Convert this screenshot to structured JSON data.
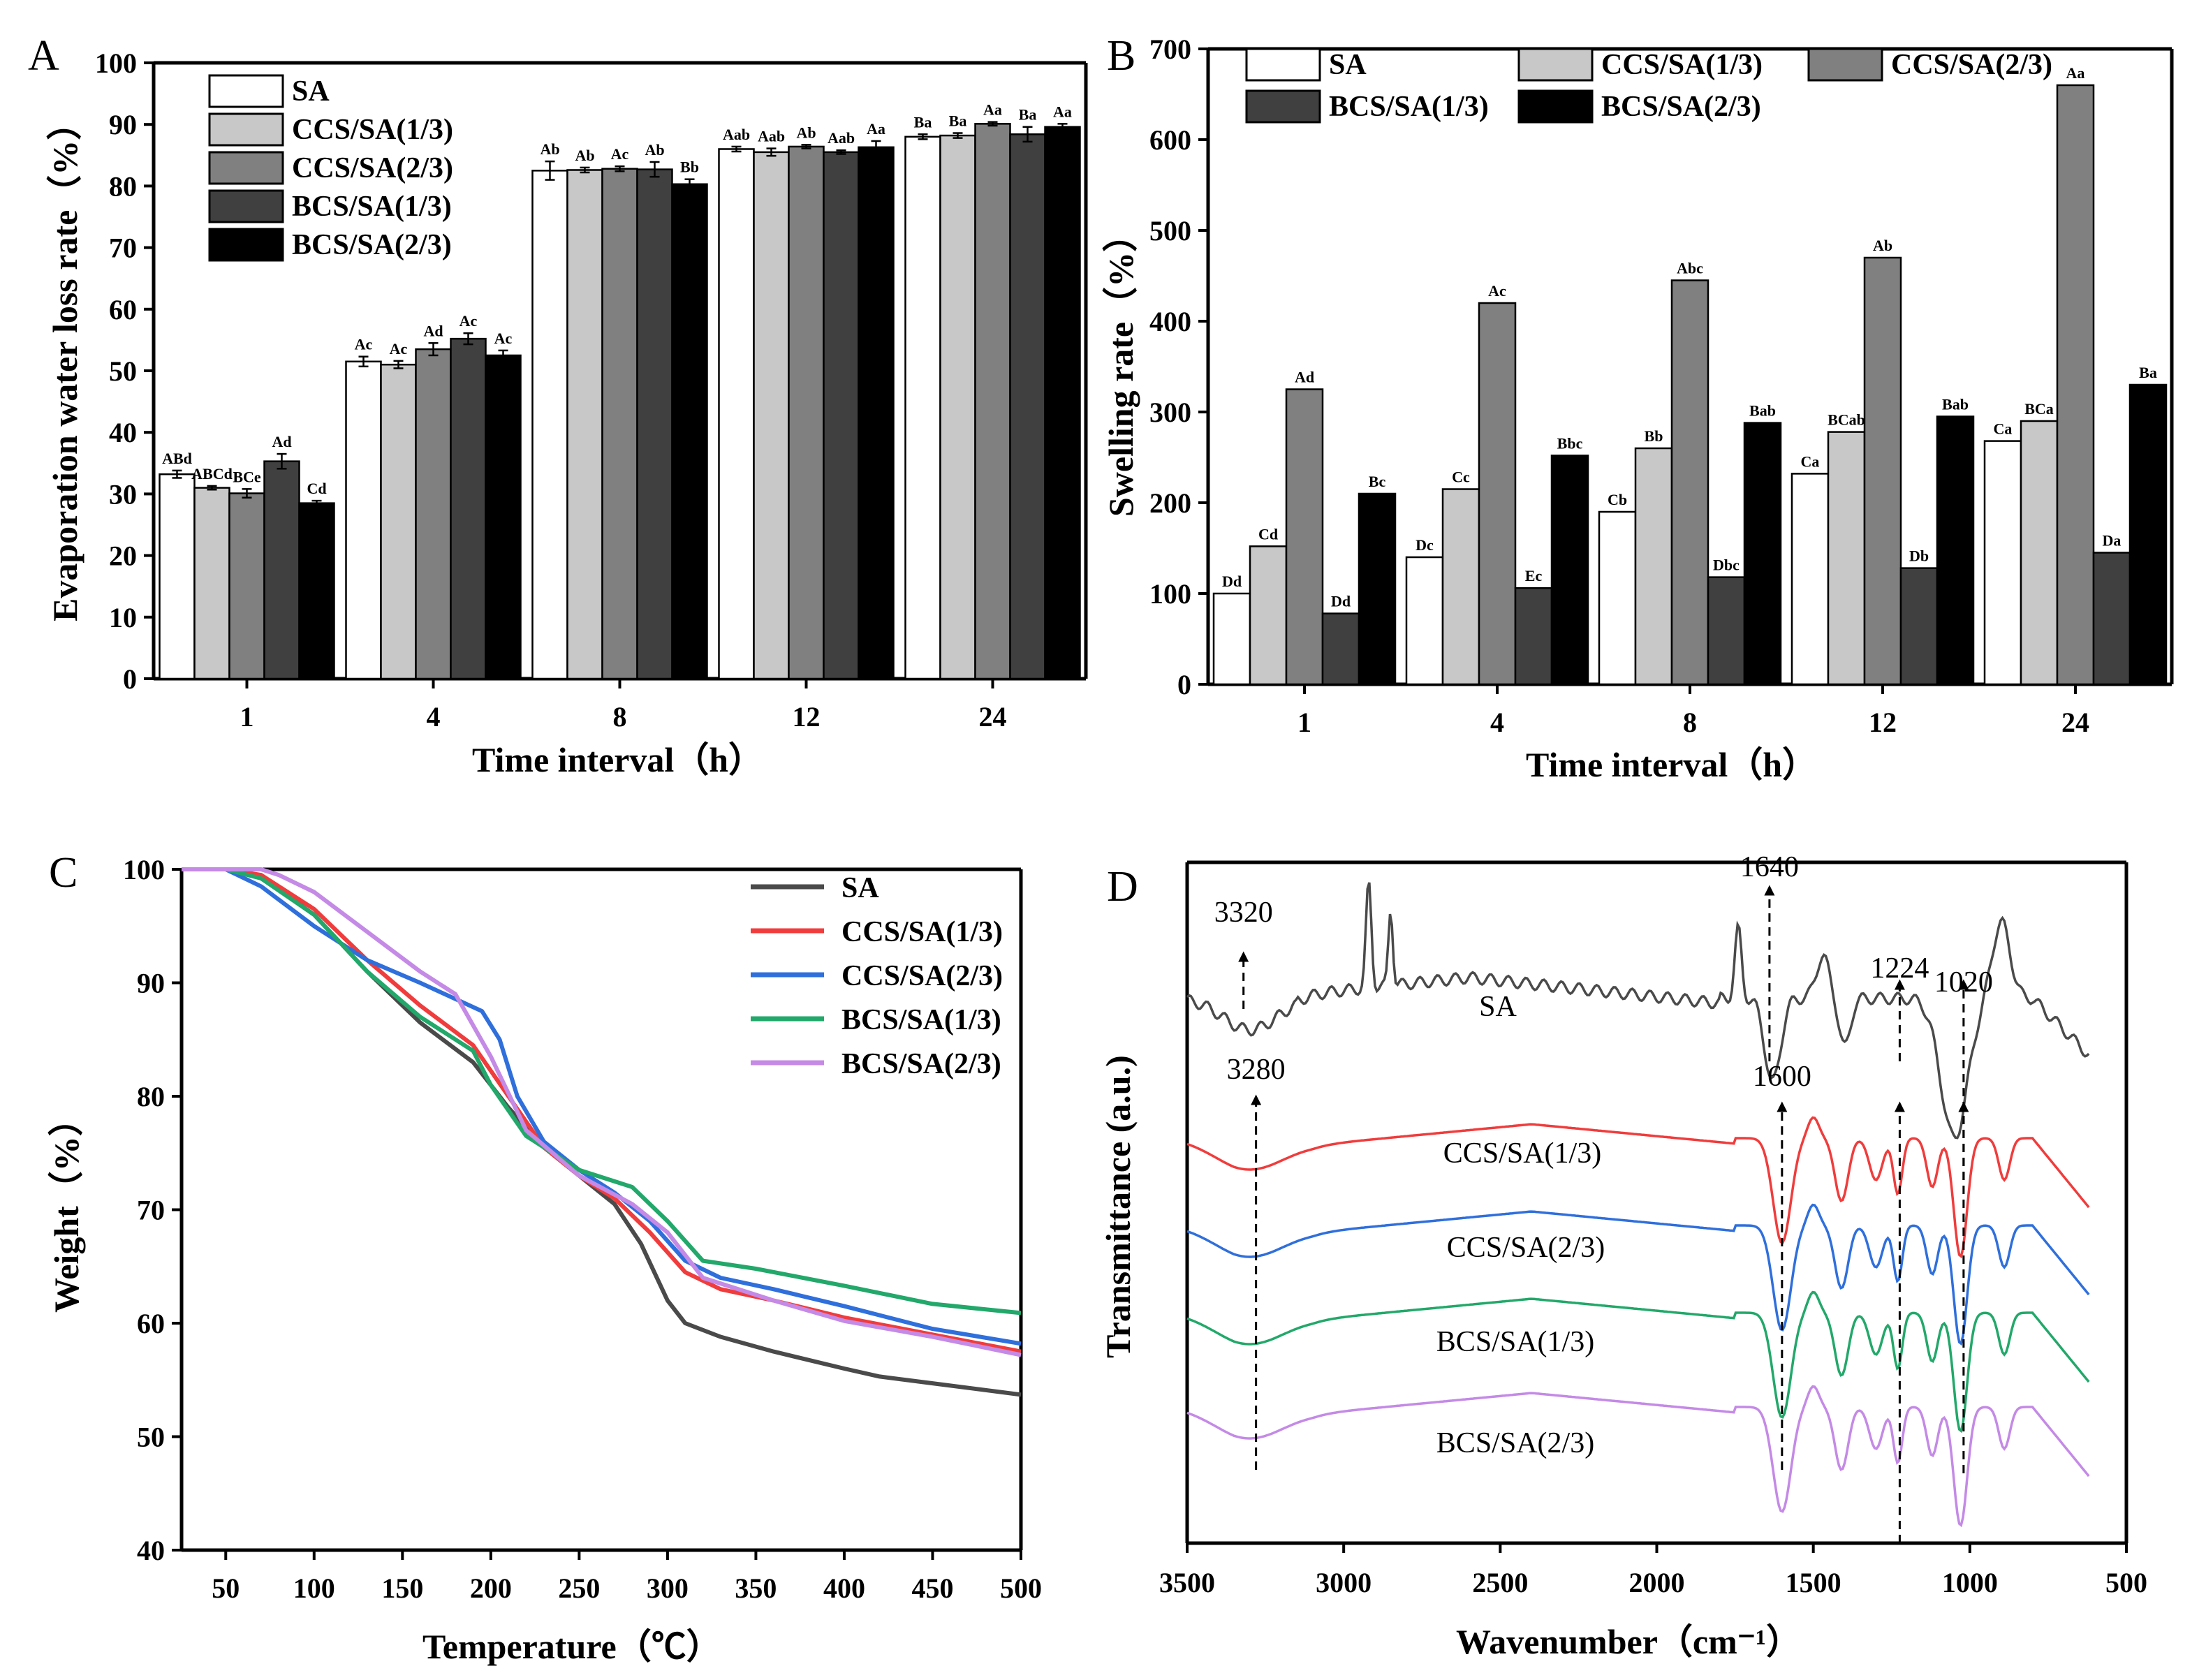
{
  "colors": {
    "SA": "#ffffff",
    "CCS13": "#c8c8c8",
    "CCS23": "#808080",
    "BCS13": "#404040",
    "BCS23": "#000000",
    "lineSA": "#4a4a4a",
    "lineCCS13": "#f03c3c",
    "lineCCS23": "#2f6fdc",
    "lineBCS13": "#22a86a",
    "lineBCS23": "#c48ae6"
  },
  "chart_data": [
    {
      "panel": "A",
      "type": "bar",
      "xlabel": "Time interval（h）",
      "ylabel": "Evaporation water loss rate（%）",
      "ylim": [
        0,
        100
      ],
      "yticks": [
        "0",
        "10",
        "20",
        "30",
        "40",
        "50",
        "60",
        "70",
        "80",
        "90",
        "100"
      ],
      "categories": [
        "1",
        "4",
        "8",
        "12",
        "24"
      ],
      "legend": [
        "SA",
        "CCS/SA(1/3)",
        "CCS/SA(2/3)",
        "BCS/SA(1/3)",
        "BCS/SA(2/3)"
      ],
      "series": [
        {
          "name": "SA",
          "values": [
            33.2,
            51.5,
            82.5,
            86,
            88
          ],
          "errors": [
            0.6,
            0.8,
            1.5,
            0.4,
            0.4
          ],
          "labels": [
            "ABd",
            "Ac",
            "Ab",
            "Aab",
            "Ba"
          ]
        },
        {
          "name": "CCS/SA(1/3)",
          "values": [
            31,
            51,
            82.6,
            85.5,
            88.2
          ],
          "errors": [
            0.3,
            0.6,
            0.4,
            0.6,
            0.4
          ],
          "labels": [
            "ABCd",
            "Ac",
            "Ab",
            "Aab",
            "Ba"
          ]
        },
        {
          "name": "CCS/SA(2/3)",
          "values": [
            30.1,
            53.5,
            82.8,
            86.4,
            90.1
          ],
          "errors": [
            0.7,
            1.0,
            0.4,
            0.3,
            0.3
          ],
          "labels": [
            "BCe",
            "Ad",
            "Ac",
            "Ab",
            "Aa"
          ]
        },
        {
          "name": "BCS/SA(1/3)",
          "values": [
            35.3,
            55.2,
            82.7,
            85.5,
            88.4
          ],
          "errors": [
            1.2,
            0.9,
            1.2,
            0.3,
            1.2
          ],
          "labels": [
            "Ad",
            "Ac",
            "Ab",
            "Aab",
            "Ba"
          ]
        },
        {
          "name": "BCS/SA(2/3)",
          "values": [
            28.5,
            52.5,
            80.3,
            86.3,
            89.6
          ],
          "errors": [
            0.4,
            0.8,
            0.8,
            1.0,
            0.5
          ],
          "labels": [
            "Cd",
            "Ac",
            "Bb",
            "Aa",
            "Aa"
          ]
        }
      ]
    },
    {
      "panel": "B",
      "type": "bar",
      "xlabel": "Time interval（h）",
      "ylabel": "Swelling rate（%）",
      "ylim": [
        0,
        700
      ],
      "yticks": [
        "0",
        "100",
        "200",
        "300",
        "400",
        "500",
        "600",
        "700"
      ],
      "categories": [
        "1",
        "4",
        "8",
        "12",
        "24"
      ],
      "legend": [
        "SA",
        "CCS/SA(1/3)",
        "CCS/SA(2/3)",
        "BCS/SA(1/3)",
        "BCS/SA(2/3)"
      ],
      "series": [
        {
          "name": "SA",
          "values": [
            100,
            140,
            190,
            232,
            268
          ],
          "labels": [
            "Dd",
            "Dc",
            "Cb",
            "Ca",
            "Ca"
          ]
        },
        {
          "name": "CCS/SA(1/3)",
          "values": [
            152,
            215,
            260,
            278,
            290
          ],
          "labels": [
            "Cd",
            "Cc",
            "Bb",
            "BCab",
            "BCa"
          ]
        },
        {
          "name": "CCS/SA(2/3)",
          "values": [
            325,
            420,
            445,
            470,
            660
          ],
          "labels": [
            "Ad",
            "Ac",
            "Abc",
            "Ab",
            "Aa"
          ]
        },
        {
          "name": "BCS/SA(1/3)",
          "values": [
            78,
            106,
            118,
            128,
            145
          ],
          "labels": [
            "Dd",
            "Ec",
            "Dbc",
            "Db",
            "Da"
          ]
        },
        {
          "name": "BCS/SA(2/3)",
          "values": [
            210,
            252,
            288,
            295,
            330
          ],
          "labels": [
            "Bc",
            "Bbc",
            "Bab",
            "Bab",
            "Ba"
          ]
        }
      ]
    },
    {
      "panel": "C",
      "type": "line",
      "xlabel": "Temperature（℃）",
      "ylabel": "Weight（%）",
      "xlim": [
        25,
        500
      ],
      "ylim": [
        40,
        100
      ],
      "xticks": [
        "50",
        "100",
        "150",
        "200",
        "250",
        "300",
        "350",
        "400",
        "450",
        "500"
      ],
      "yticks": [
        "40",
        "50",
        "60",
        "70",
        "80",
        "90",
        "100"
      ],
      "legend": [
        "SA",
        "CCS/SA(1/3)",
        "CCS/SA(2/3)",
        "BCS/SA(1/3)",
        "BCS/SA(2/3)"
      ],
      "series": [
        {
          "name": "SA",
          "x": [
            25,
            50,
            70,
            100,
            130,
            160,
            190,
            210,
            230,
            250,
            270,
            285,
            300,
            310,
            330,
            360,
            400,
            420,
            450,
            500
          ],
          "y": [
            100,
            100,
            99.3,
            96,
            91,
            86.5,
            83,
            79,
            75.5,
            73,
            70.5,
            67,
            62,
            60,
            58.8,
            57.5,
            56,
            55.3,
            54.7,
            53.7
          ]
        },
        {
          "name": "CCS/SA(1/3)",
          "x": [
            25,
            50,
            70,
            100,
            130,
            160,
            190,
            210,
            230,
            250,
            270,
            290,
            310,
            330,
            360,
            400,
            450,
            500
          ],
          "y": [
            100,
            100,
            99.5,
            96.5,
            92,
            88,
            84.5,
            80,
            75.5,
            73,
            71,
            68,
            64.5,
            63,
            62,
            60.5,
            59,
            57.5
          ]
        },
        {
          "name": "CCS/SA(2/3)",
          "x": [
            25,
            50,
            70,
            100,
            130,
            160,
            195,
            205,
            215,
            230,
            250,
            270,
            290,
            310,
            330,
            360,
            400,
            450,
            500
          ],
          "y": [
            100,
            100,
            98.5,
            95,
            92,
            90,
            87.5,
            85,
            80,
            76,
            73.5,
            71.5,
            69,
            65.5,
            64,
            63,
            61.5,
            59.5,
            58.2
          ]
        },
        {
          "name": "BCS/SA(1/3)",
          "x": [
            25,
            50,
            70,
            100,
            130,
            160,
            190,
            200,
            220,
            250,
            280,
            300,
            320,
            350,
            400,
            450,
            500
          ],
          "y": [
            100,
            100,
            99.2,
            96,
            91,
            87,
            84,
            81,
            76.5,
            73.5,
            72,
            69,
            65.5,
            64.8,
            63.3,
            61.7,
            60.9
          ]
        },
        {
          "name": "BCS/SA(2/3)",
          "x": [
            25,
            50,
            70,
            80,
            100,
            130,
            160,
            180,
            200,
            220,
            250,
            280,
            300,
            320,
            360,
            400,
            450,
            500
          ],
          "y": [
            100,
            100,
            100,
            99.5,
            98,
            94.5,
            91,
            89,
            83.5,
            77,
            73,
            70.5,
            68,
            64,
            62,
            60.2,
            58.8,
            57.2
          ]
        }
      ]
    },
    {
      "panel": "D",
      "type": "line",
      "xlabel": "Wavenumber（cm⁻¹）",
      "ylabel": "Transmittance (a.u.)",
      "xlim": [
        3500,
        500
      ],
      "xticks": [
        "3500",
        "3000",
        "2500",
        "2000",
        "1500",
        "1000",
        "500"
      ],
      "series_labels": [
        "SA",
        "CCS/SA(1/3)",
        "CCS/SA(2/3)",
        "BCS/SA(1/3)",
        "BCS/SA(2/3)"
      ],
      "annotations": [
        "3320",
        "1640",
        "1224",
        "1020",
        "3280",
        "1600"
      ]
    }
  ]
}
